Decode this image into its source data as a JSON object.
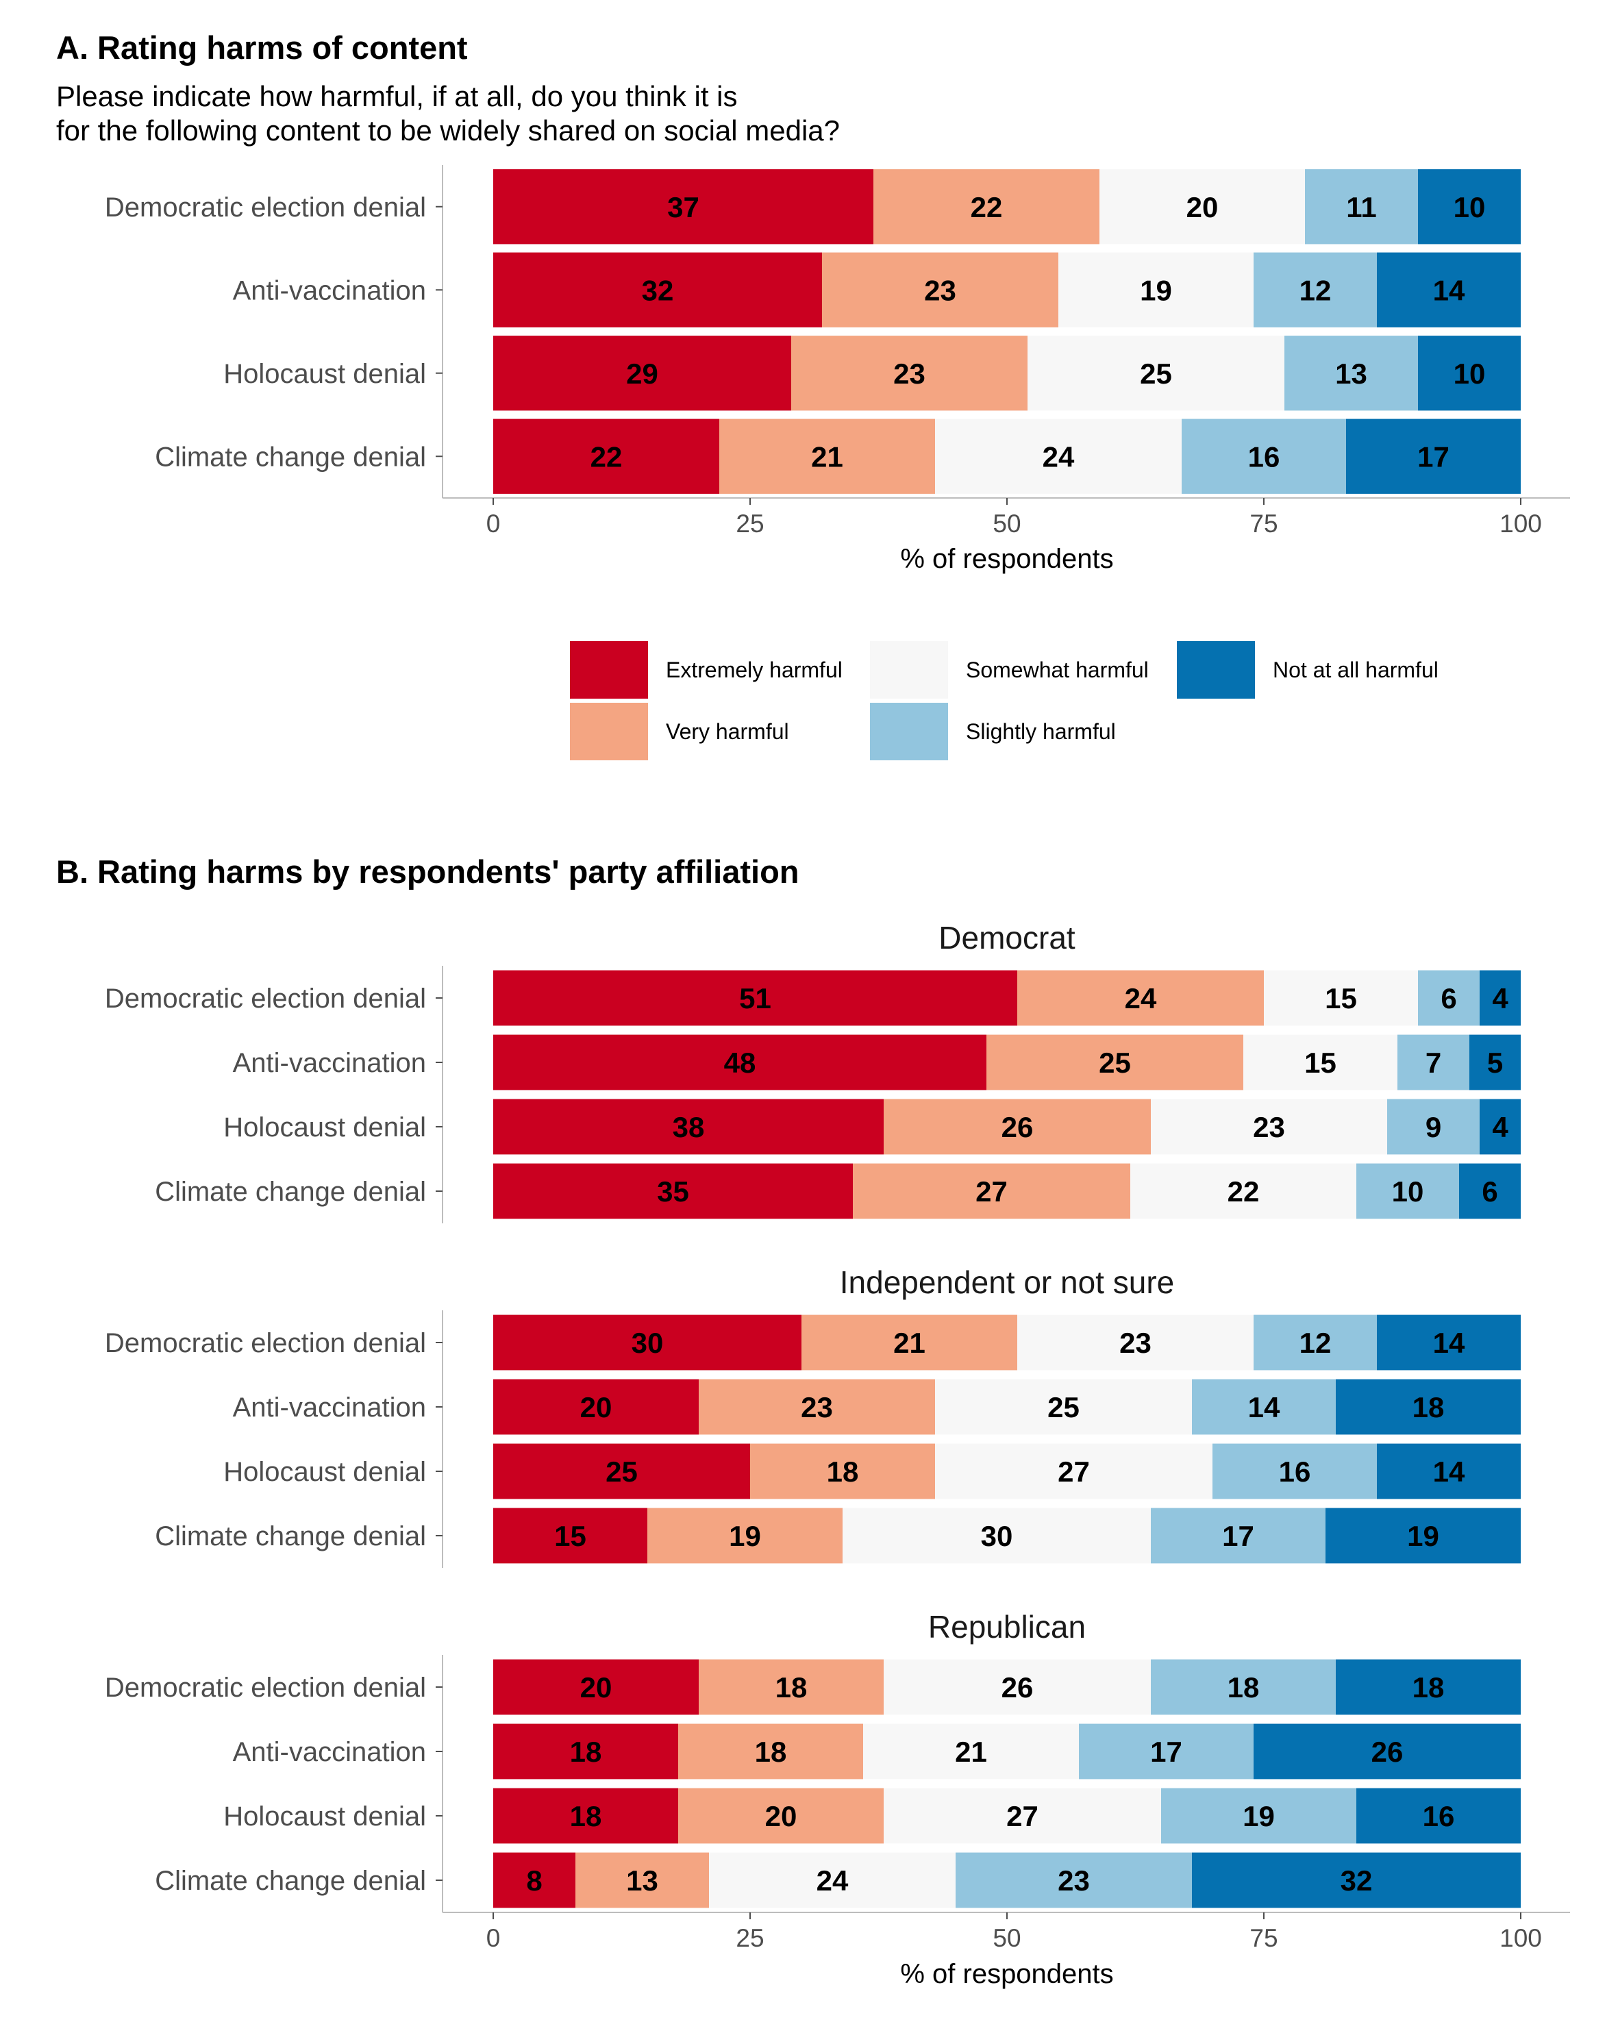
{
  "panel_a": {
    "title": "A. Rating harms of content",
    "question_line1": "Please indicate how harmful, if at all, do you think it is",
    "question_line2": "for the following content to be widely shared on social media?",
    "xlabel": "% of respondents"
  },
  "panel_b": {
    "title": "B. Rating harms by respondents' party affiliation",
    "xlabel": "% of respondents"
  },
  "legend": {
    "items": [
      {
        "label": "Extremely harmful",
        "color": "#ca0020"
      },
      {
        "label": "Very harmful",
        "color": "#f4a582"
      },
      {
        "label": "Somewhat harmful",
        "color": "#f7f7f7"
      },
      {
        "label": "Slightly harmful",
        "color": "#92c5de"
      },
      {
        "label": "Not at all harmful",
        "color": "#0571b0"
      }
    ]
  },
  "chart_data": [
    {
      "type": "bar",
      "orientation": "horizontal",
      "stacked": true,
      "title": "A. Rating harms of content",
      "subtitle": "Please indicate how harmful, if at all, do you think it is for the following content to be widely shared on social media?",
      "xlabel": "% of respondents",
      "xlim": [
        0,
        100
      ],
      "xticks": [
        0,
        25,
        50,
        75,
        100
      ],
      "categories": [
        "Democratic election denial",
        "Anti-vaccination",
        "Holocaust denial",
        "Climate change denial"
      ],
      "series": [
        {
          "name": "Extremely harmful",
          "values": [
            37,
            32,
            29,
            22
          ]
        },
        {
          "name": "Very harmful",
          "values": [
            22,
            23,
            23,
            21
          ]
        },
        {
          "name": "Somewhat harmful",
          "values": [
            20,
            19,
            25,
            24
          ]
        },
        {
          "name": "Slightly harmful",
          "values": [
            11,
            12,
            13,
            16
          ]
        },
        {
          "name": "Not at all harmful",
          "values": [
            10,
            14,
            10,
            17
          ]
        }
      ],
      "grid": false,
      "legend": "bottom"
    },
    {
      "type": "bar",
      "orientation": "horizontal",
      "stacked": true,
      "facet": "Democrat",
      "xlim": [
        0,
        100
      ],
      "categories": [
        "Democratic election denial",
        "Anti-vaccination",
        "Holocaust denial",
        "Climate change denial"
      ],
      "series": [
        {
          "name": "Extremely harmful",
          "values": [
            51,
            48,
            38,
            35
          ]
        },
        {
          "name": "Very harmful",
          "values": [
            24,
            25,
            26,
            27
          ]
        },
        {
          "name": "Somewhat harmful",
          "values": [
            15,
            15,
            23,
            22
          ]
        },
        {
          "name": "Slightly harmful",
          "values": [
            6,
            7,
            9,
            10
          ]
        },
        {
          "name": "Not at all harmful",
          "values": [
            4,
            5,
            4,
            6
          ]
        }
      ]
    },
    {
      "type": "bar",
      "orientation": "horizontal",
      "stacked": true,
      "facet": "Independent or not sure",
      "xlim": [
        0,
        100
      ],
      "categories": [
        "Democratic election denial",
        "Anti-vaccination",
        "Holocaust denial",
        "Climate change denial"
      ],
      "series": [
        {
          "name": "Extremely harmful",
          "values": [
            30,
            20,
            25,
            15
          ]
        },
        {
          "name": "Very harmful",
          "values": [
            21,
            23,
            18,
            19
          ]
        },
        {
          "name": "Somewhat harmful",
          "values": [
            23,
            25,
            27,
            30
          ]
        },
        {
          "name": "Slightly harmful",
          "values": [
            12,
            14,
            16,
            17
          ]
        },
        {
          "name": "Not at all harmful",
          "values": [
            14,
            18,
            14,
            19
          ]
        }
      ]
    },
    {
      "type": "bar",
      "orientation": "horizontal",
      "stacked": true,
      "facet": "Republican",
      "xlabel": "% of respondents",
      "xlim": [
        0,
        100
      ],
      "xticks": [
        0,
        25,
        50,
        75,
        100
      ],
      "categories": [
        "Democratic election denial",
        "Anti-vaccination",
        "Holocaust denial",
        "Climate change denial"
      ],
      "series": [
        {
          "name": "Extremely harmful",
          "values": [
            20,
            18,
            18,
            8
          ]
        },
        {
          "name": "Very harmful",
          "values": [
            18,
            18,
            20,
            13
          ]
        },
        {
          "name": "Somewhat harmful",
          "values": [
            26,
            21,
            27,
            24
          ]
        },
        {
          "name": "Slightly harmful",
          "values": [
            18,
            17,
            19,
            23
          ]
        },
        {
          "name": "Not at all harmful",
          "values": [
            18,
            26,
            16,
            32
          ]
        }
      ]
    }
  ]
}
